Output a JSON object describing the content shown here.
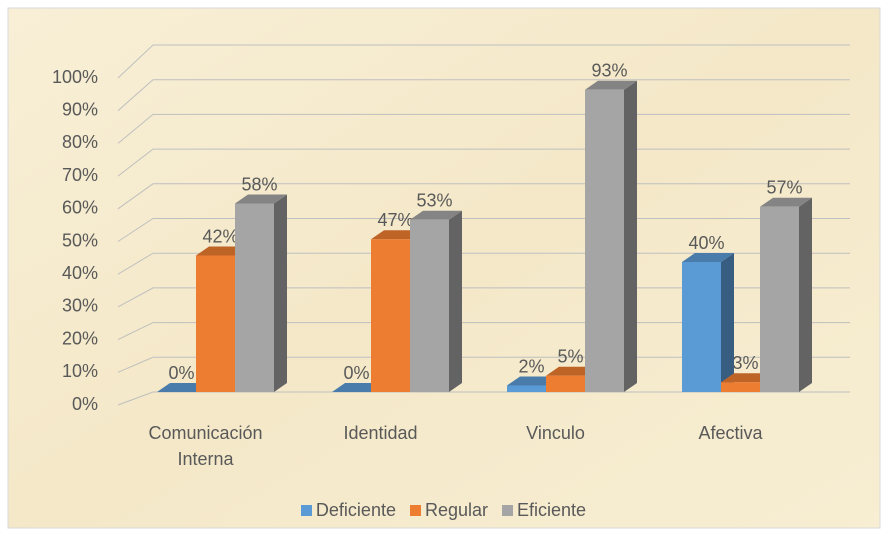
{
  "chart_data": {
    "type": "bar3d",
    "categories": [
      "Comunicación Interna",
      "Identidad",
      "Vinculo",
      "Afectiva"
    ],
    "series": [
      {
        "name": "Deficiente",
        "color": "#5b9bd5",
        "values": [
          0,
          0,
          2,
          40
        ],
        "value_labels": [
          "0%",
          "0%",
          "2%",
          "40%"
        ]
      },
      {
        "name": "Regular",
        "color": "#ed7d31",
        "values": [
          42,
          47,
          5,
          3
        ],
        "value_labels": [
          "42%",
          "47%",
          "5%",
          "3%"
        ]
      },
      {
        "name": "Eficiente",
        "color": "#a5a5a5",
        "values": [
          58,
          53,
          93,
          57
        ],
        "value_labels": [
          "58%",
          "53%",
          "93%",
          "57%"
        ]
      }
    ],
    "ylim": [
      0,
      100
    ],
    "yticks": [
      {
        "value": 0,
        "label": "0%"
      },
      {
        "value": 10,
        "label": "10%"
      },
      {
        "value": 20,
        "label": "20%"
      },
      {
        "value": 30,
        "label": "30%"
      },
      {
        "value": 40,
        "label": "40%"
      },
      {
        "value": 50,
        "label": "50%"
      },
      {
        "value": 60,
        "label": "60%"
      },
      {
        "value": 70,
        "label": "70%"
      },
      {
        "value": 80,
        "label": "80%"
      },
      {
        "value": 90,
        "label": "90%"
      },
      {
        "value": 100,
        "label": "100%"
      }
    ],
    "grid": true,
    "legend": "bottom"
  }
}
